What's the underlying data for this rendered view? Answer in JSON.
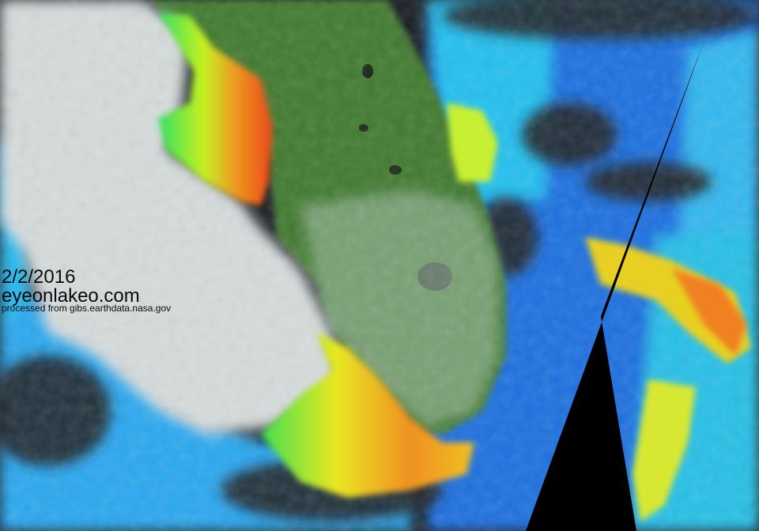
{
  "image": {
    "subject": "satellite imagery of Florida with ocean color overlay",
    "colors": {
      "land": "#3f7a2e",
      "cloud": "#d4dcdc",
      "ocean_blue": "#1f6fe0",
      "ocean_cyan": "#20c8f0",
      "bloom_green": "#5ef02a",
      "bloom_yellow": "#f0e020",
      "bloom_orange": "#f07818",
      "no_data": "#000000"
    }
  },
  "watermark": {
    "date": "2/2/2016",
    "site": "eyeonlakeo.com",
    "credit": "processed from gibs.earthdata.nasa.gov"
  }
}
